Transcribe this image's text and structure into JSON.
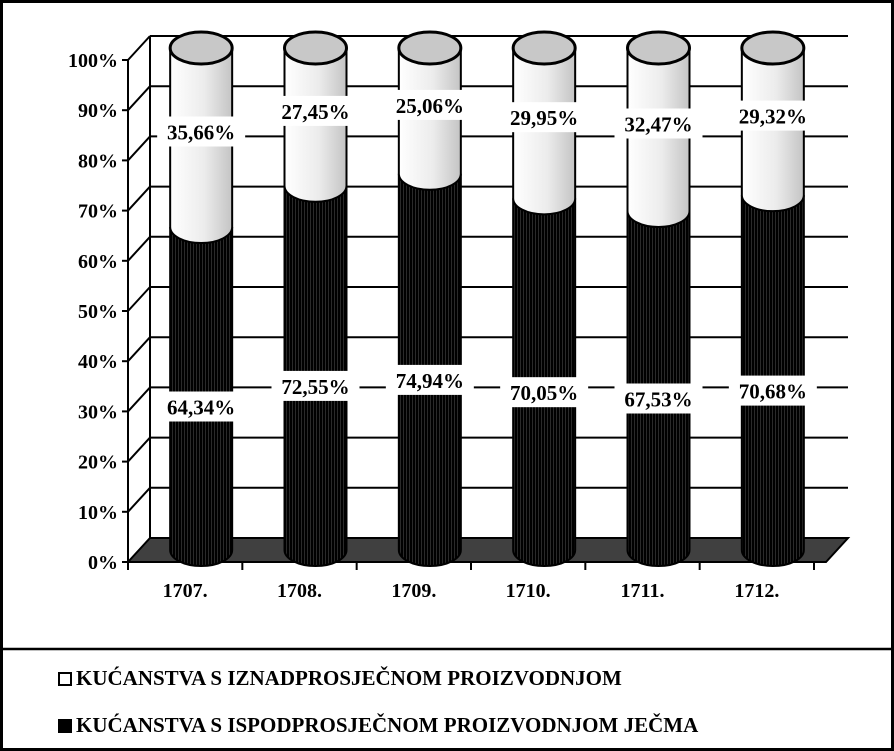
{
  "chart_data": {
    "type": "bar",
    "stacked": "percent",
    "three_d": "cylinder",
    "categories": [
      "1707.",
      "1708.",
      "1709.",
      "1710.",
      "1711.",
      "1712."
    ],
    "series": [
      {
        "name": "KUĆANSTVA S ISPODPROSJEČNOM PROIZVODNJOM JEČMA",
        "values": [
          64.34,
          72.55,
          74.94,
          70.05,
          67.53,
          70.68
        ],
        "labels": [
          "64,34%",
          "72,55%",
          "74,94%",
          "70,05%",
          "67,53%",
          "70,68%"
        ],
        "color": "#000000"
      },
      {
        "name": "KUĆANSTVA S IZNADPROSJEČNOM PROIZVODNJOM",
        "values": [
          35.66,
          27.45,
          25.06,
          29.95,
          32.47,
          29.32
        ],
        "labels": [
          "35,66%",
          "27,45%",
          "25,06%",
          "29,95%",
          "32,47%",
          "29,32%"
        ],
        "color": "#e6e6e6"
      }
    ],
    "y_ticks": [
      "0%",
      "10%",
      "20%",
      "30%",
      "40%",
      "50%",
      "60%",
      "70%",
      "80%",
      "90%",
      "100%"
    ],
    "ylim": [
      0,
      100
    ],
    "grid": true,
    "legend_position": "bottom"
  }
}
